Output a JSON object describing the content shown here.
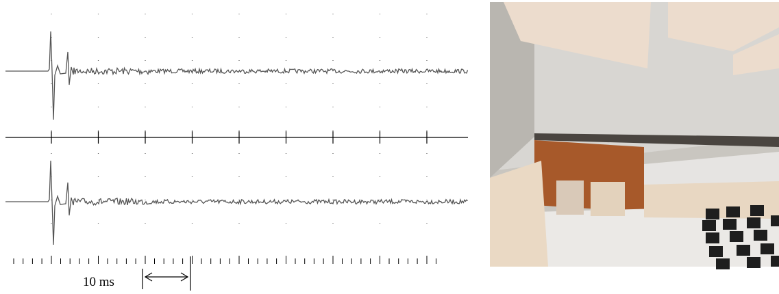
{
  "scale_label": "10 ms"
}
